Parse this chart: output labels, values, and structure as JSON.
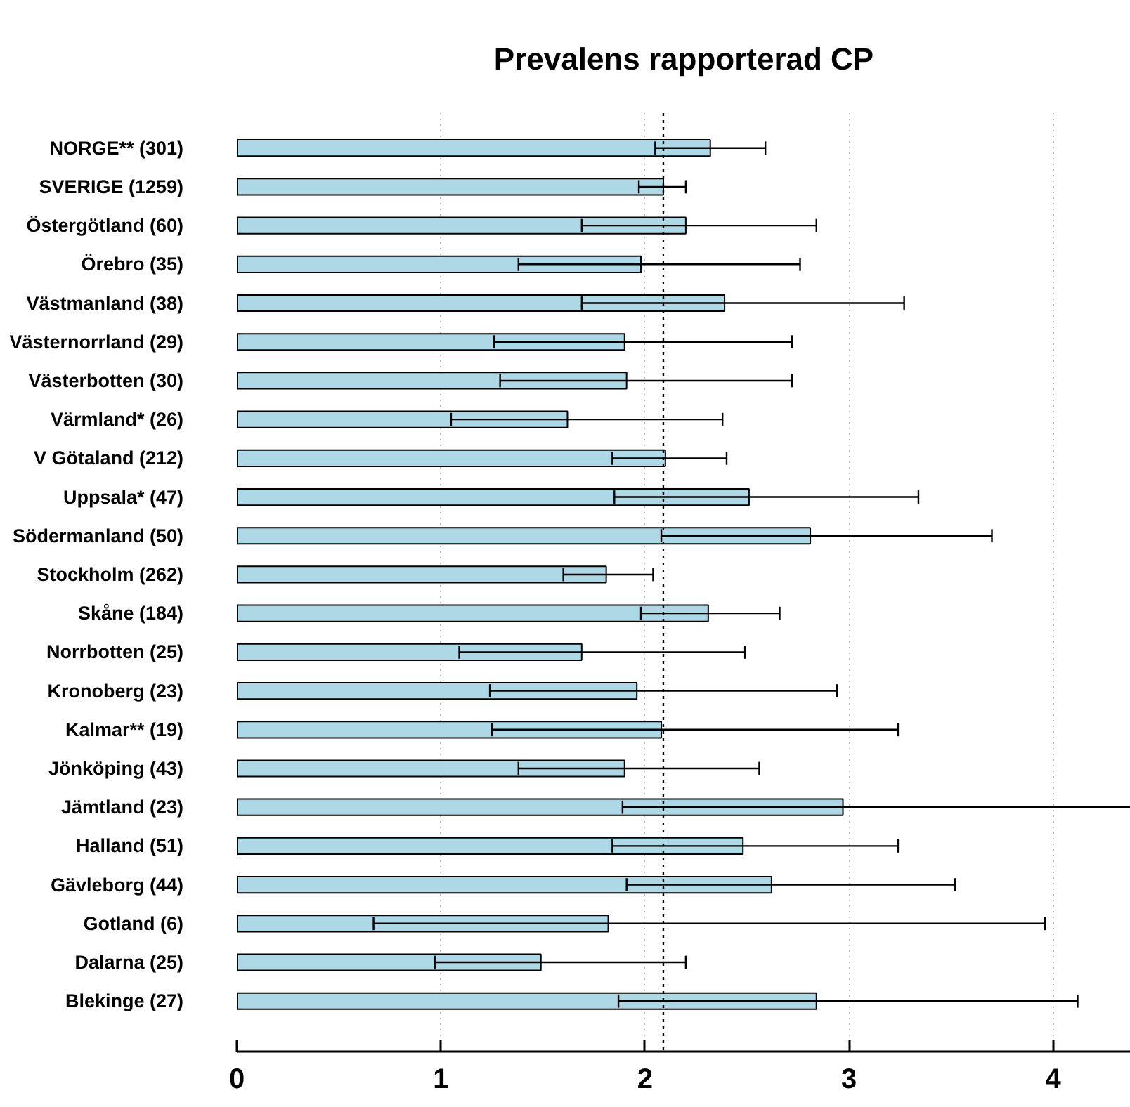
{
  "chart_data": {
    "type": "bar",
    "orientation": "horizontal",
    "title": "Prevalens rapporterad CP",
    "categories": [
      "NORGE** (301)",
      "SVERIGE (1259)",
      "Östergötland (60)",
      "Örebro (35)",
      "Västmanland (38)",
      "Västernorrland (29)",
      "Västerbotten (30)",
      "Värmland* (26)",
      "V Götaland (212)",
      "Uppsala* (47)",
      "Södermanland (50)",
      "Stockholm (262)",
      "Skåne (184)",
      "Norrbotten (25)",
      "Kronoberg (23)",
      "Kalmar** (19)",
      "Jönköping (43)",
      "Jämtland (23)",
      "Halland (51)",
      "Gävleborg (44)",
      "Gotland (6)",
      "Dalarna (25)",
      "Blekinge (27)"
    ],
    "values": [
      2.32,
      2.09,
      2.2,
      1.98,
      2.39,
      1.9,
      1.91,
      1.62,
      2.1,
      2.51,
      2.81,
      1.81,
      2.31,
      1.69,
      1.96,
      2.08,
      1.9,
      2.97,
      2.48,
      2.62,
      1.82,
      1.49,
      2.84
    ],
    "errors": [
      [
        2.05,
        2.59
      ],
      [
        1.97,
        2.2
      ],
      [
        1.69,
        2.84
      ],
      [
        1.38,
        2.76
      ],
      [
        1.69,
        3.27
      ],
      [
        1.26,
        2.72
      ],
      [
        1.29,
        2.72
      ],
      [
        1.05,
        2.38
      ],
      [
        1.84,
        2.4
      ],
      [
        1.85,
        3.34
      ],
      [
        2.08,
        3.7
      ],
      [
        1.6,
        2.04
      ],
      [
        1.98,
        2.66
      ],
      [
        1.09,
        2.49
      ],
      [
        1.24,
        2.94
      ],
      [
        1.25,
        3.24
      ],
      [
        1.38,
        2.56
      ],
      [
        1.89,
        4.38
      ],
      [
        1.84,
        3.24
      ],
      [
        1.91,
        3.52
      ],
      [
        0.67,
        3.96
      ],
      [
        0.97,
        2.2
      ],
      [
        1.87,
        4.12
      ]
    ],
    "color": "#add8e6",
    "xlim": [
      0,
      4.38
    ],
    "xticks": [
      0,
      1,
      2,
      3,
      4
    ],
    "grid": "x",
    "ref_lines": [
      {
        "axis": "x",
        "value": 2.09,
        "color": "#000000",
        "line_style": "dotted"
      }
    ]
  }
}
